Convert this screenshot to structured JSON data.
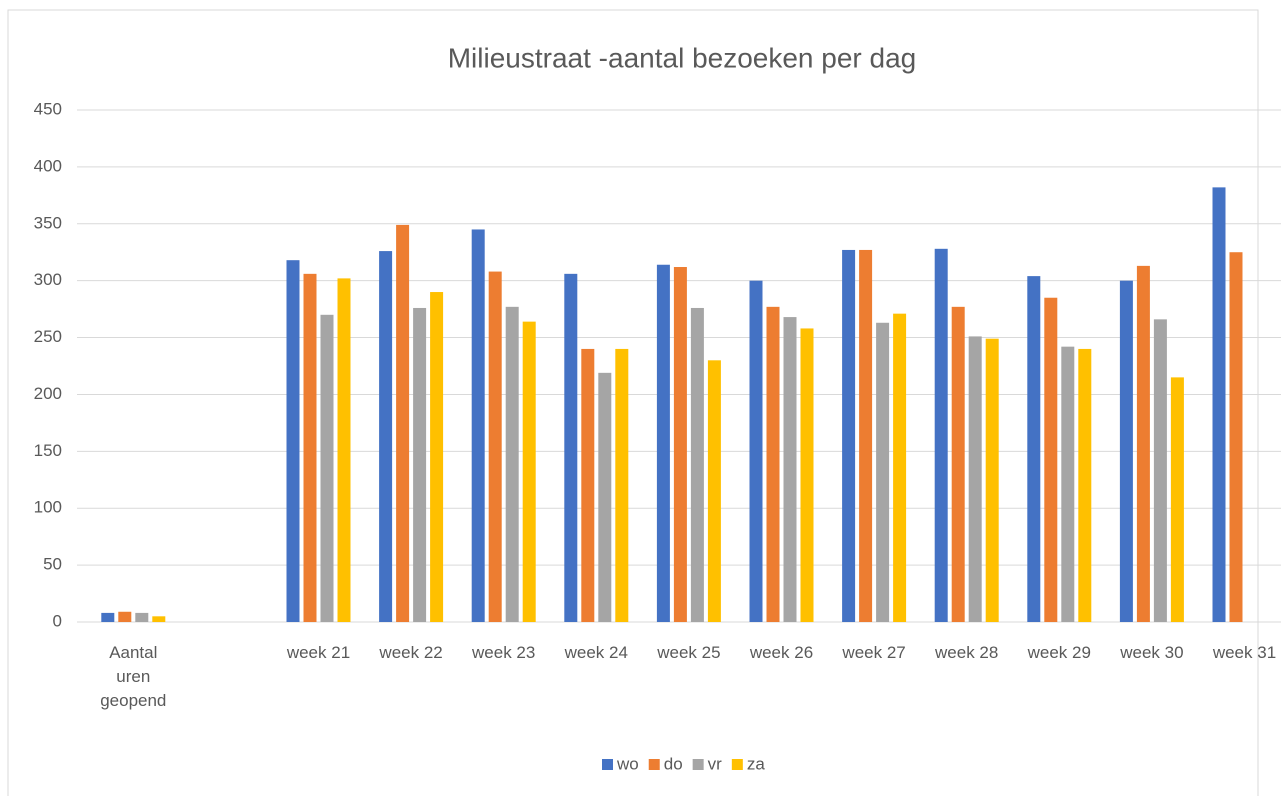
{
  "chart_data": {
    "type": "bar",
    "title": "Milieustraat -aantal bezoeken per dag",
    "categories": [
      "Aantal uren geopend",
      null,
      "week 21",
      "week 22",
      "week 23",
      "week 24",
      "week 25",
      "week 26",
      "week 27",
      "week 28",
      "week 29",
      "week 30",
      "week 31"
    ],
    "series": [
      {
        "name": "wo",
        "color": "#4472c4",
        "values": [
          8,
          null,
          318,
          326,
          345,
          306,
          314,
          300,
          327,
          328,
          304,
          300,
          382
        ]
      },
      {
        "name": "do",
        "color": "#ed7d31",
        "values": [
          9,
          null,
          306,
          349,
          308,
          240,
          312,
          277,
          327,
          277,
          285,
          313,
          325
        ]
      },
      {
        "name": "vr",
        "color": "#a5a5a5",
        "values": [
          8,
          null,
          270,
          276,
          277,
          219,
          276,
          268,
          263,
          251,
          242,
          266,
          null
        ]
      },
      {
        "name": "za",
        "color": "#ffc000",
        "values": [
          5,
          null,
          302,
          290,
          264,
          240,
          230,
          258,
          271,
          249,
          240,
          215,
          null
        ]
      }
    ],
    "ylim": [
      0,
      450
    ],
    "yticks": [
      0,
      50,
      100,
      150,
      200,
      250,
      300,
      350,
      400,
      450
    ],
    "grid": true,
    "legend": "bottom"
  }
}
